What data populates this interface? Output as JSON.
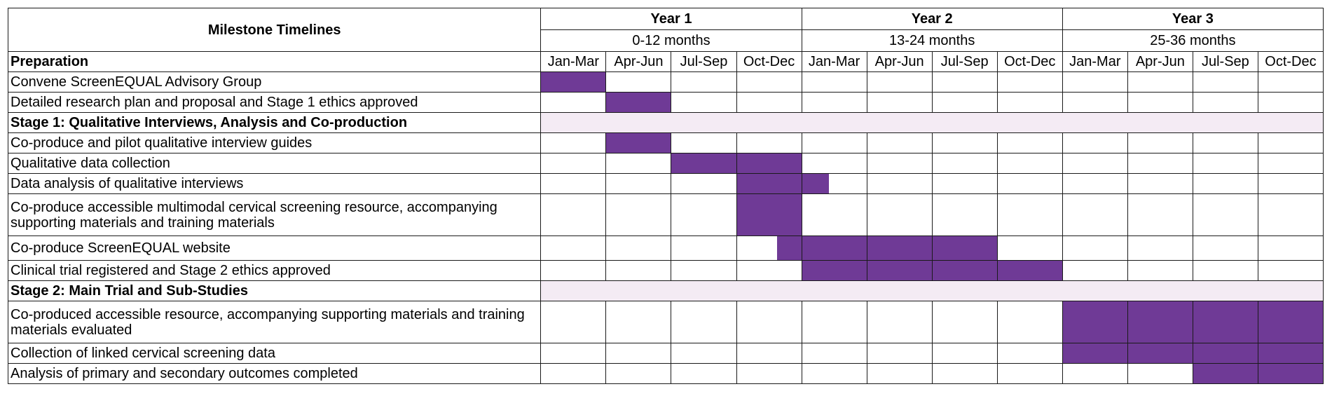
{
  "header": {
    "milestone_label": "Milestone Timelines",
    "years": [
      {
        "label": "Year 1",
        "range": "0-12 months"
      },
      {
        "label": "Year 2",
        "range": "13-24 months"
      },
      {
        "label": "Year 3",
        "range": "25-36 months"
      }
    ],
    "preparation_label": "Preparation",
    "quarters": [
      "Jan-Mar",
      "Apr-Jun",
      "Jul-Sep",
      "Oct-Dec",
      "Jan-Mar",
      "Apr-Jun",
      "Jul-Sep",
      "Oct-Dec",
      "Jan-Mar",
      "Apr-Jun",
      "Jul-Sep",
      "Oct-Dec"
    ]
  },
  "colors": {
    "bar": "#6f3a96",
    "stage_band": "#f4ebf4",
    "border": "#1a1a1a"
  },
  "rows": [
    {
      "type": "task",
      "label": "Convene ScreenEQUAL Advisory Group",
      "start": 0,
      "end": 1
    },
    {
      "type": "task",
      "label": "Detailed research plan and proposal and Stage 1 ethics approved",
      "start": 1,
      "end": 2
    },
    {
      "type": "stage",
      "label": "Stage 1: Qualitative Interviews,  Analysis and Co-production"
    },
    {
      "type": "task",
      "label": "Co-produce and pilot qualitative interview guides",
      "start": 1,
      "end": 2
    },
    {
      "type": "task",
      "label": "Qualitative data collection",
      "start": 2,
      "end": 4
    },
    {
      "type": "task",
      "label": "Data analysis of qualitative interviews",
      "start": 3,
      "end": 4.42
    },
    {
      "type": "task",
      "label": "Co-produce accessible multimodal cervical screening resource, accompanying supporting materials and training materials",
      "start": 3,
      "end": 4
    },
    {
      "type": "task",
      "label": "Co-produce ScreenEQUAL website",
      "start": 3.62,
      "end": 7
    },
    {
      "type": "task",
      "label": "Clinical trial registered and Stage 2 ethics approved",
      "start": 4,
      "end": 8
    },
    {
      "type": "stage",
      "label": "Stage 2:  Main Trial and Sub-Studies"
    },
    {
      "type": "task",
      "label": "Co-produced accessible resource, accompanying supporting materials and training materials evaluated",
      "start": 8,
      "end": 12
    },
    {
      "type": "task",
      "label": "Collection of linked cervical screening data",
      "start": 8,
      "end": 12
    },
    {
      "type": "task",
      "label": "Analysis of primary and secondary outcomes completed",
      "start": 10,
      "end": 12
    }
  ]
}
